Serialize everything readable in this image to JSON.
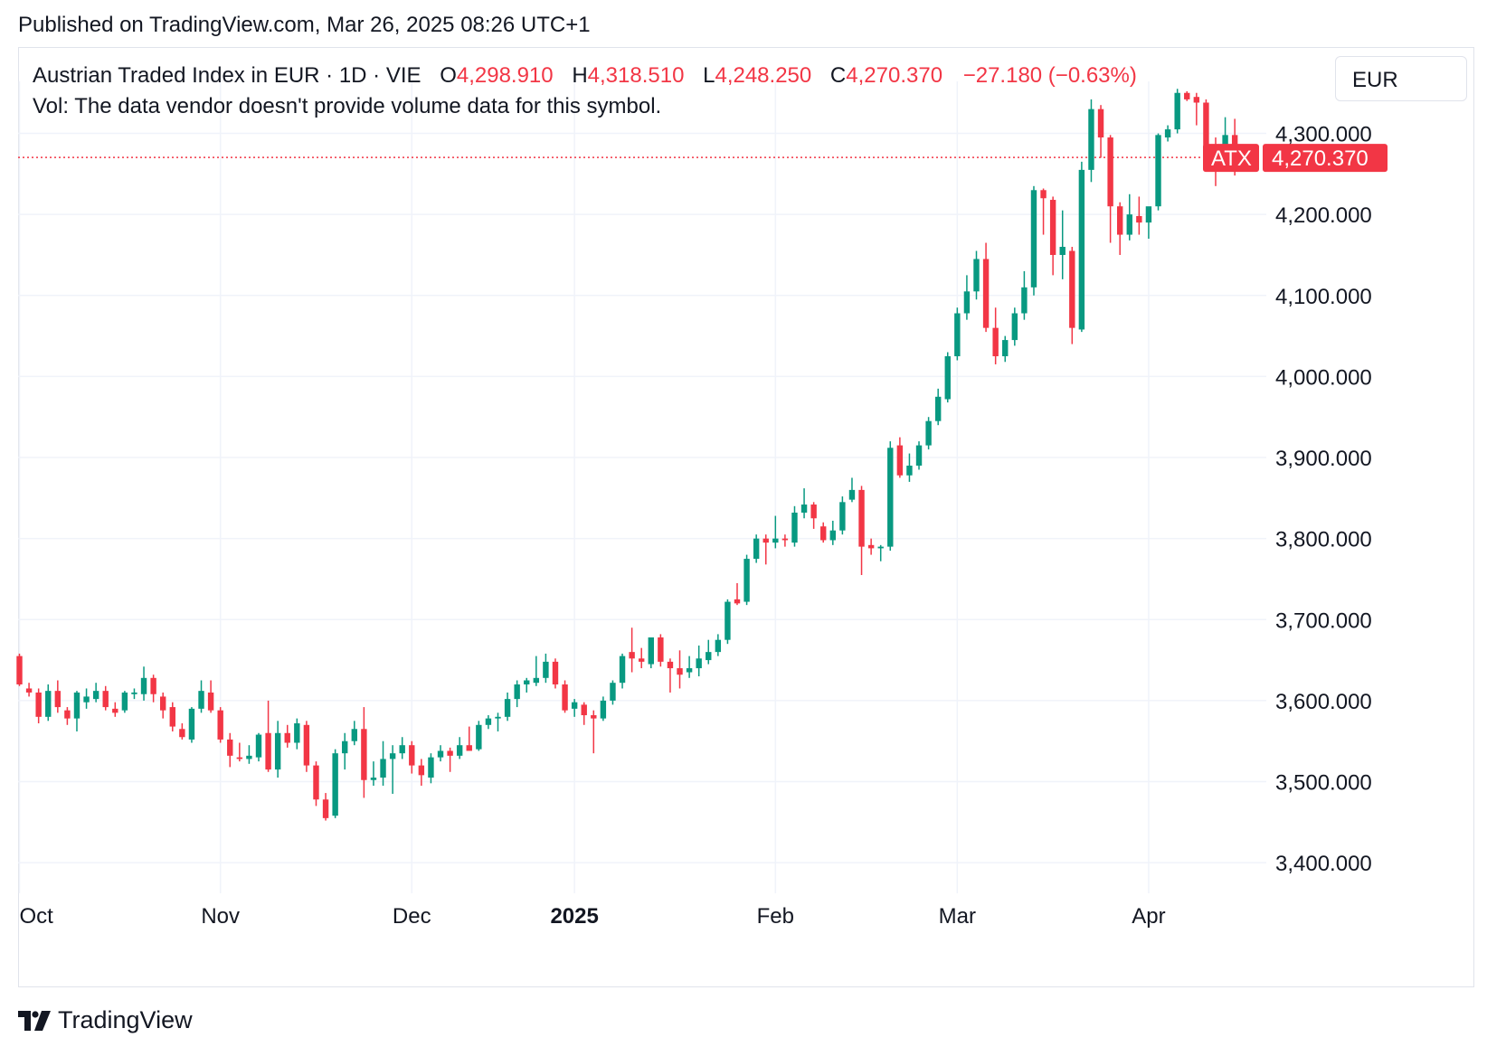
{
  "published": "Published on TradingView.com, Mar 26, 2025 08:26 UTC+1",
  "legend": {
    "title": "Austrian Traded Index in EUR · 1D · VIE",
    "o_key": "O",
    "o_val": "4,298.910",
    "h_key": "H",
    "h_val": "4,318.510",
    "l_key": "L",
    "l_val": "4,248.250",
    "c_key": "C",
    "c_val": "4,270.370",
    "change": "−27.180 (−0.63%)",
    "vol": "Vol: The data vendor doesn't provide volume data for this symbol."
  },
  "currency": "EUR",
  "footer": {
    "brand": "TradingView"
  },
  "colors": {
    "up": "#089981",
    "down": "#f23645",
    "grid": "#f0f3fa",
    "text": "#131722"
  },
  "chart_data": {
    "type": "candlestick",
    "symbol": "ATX",
    "last_price": 4270.37,
    "last_price_label": "4,270.370",
    "ylim": [
      3360,
      4420
    ],
    "y_ticks": [
      3400,
      3500,
      3600,
      3700,
      3800,
      3900,
      4000,
      4100,
      4200,
      4300
    ],
    "y_tick_labels": [
      "3,400.000",
      "3,500.000",
      "3,600.000",
      "3,700.000",
      "3,800.000",
      "3,900.000",
      "4,000.000",
      "4,100.000",
      "4,200.000",
      "4,300.000"
    ],
    "x_ticks": [
      {
        "label": "Oct",
        "index": 0,
        "bold": false
      },
      {
        "label": "Nov",
        "index": 21,
        "bold": false
      },
      {
        "label": "Dec",
        "index": 41,
        "bold": false
      },
      {
        "label": "2025",
        "index": 58,
        "bold": true
      },
      {
        "label": "Feb",
        "index": 79,
        "bold": false
      },
      {
        "label": "Mar",
        "index": 98,
        "bold": false
      },
      {
        "label": "Apr",
        "index": 118,
        "bold": false
      }
    ],
    "candles": [
      [
        3655,
        3658,
        3618,
        3620
      ],
      [
        3615,
        3622,
        3605,
        3610
      ],
      [
        3610,
        3615,
        3572,
        3580
      ],
      [
        3580,
        3620,
        3575,
        3612
      ],
      [
        3612,
        3625,
        3585,
        3592
      ],
      [
        3588,
        3592,
        3570,
        3578
      ],
      [
        3578,
        3612,
        3562,
        3610
      ],
      [
        3598,
        3615,
        3590,
        3605
      ],
      [
        3602,
        3622,
        3598,
        3612
      ],
      [
        3612,
        3618,
        3588,
        3592
      ],
      [
        3590,
        3598,
        3580,
        3585
      ],
      [
        3588,
        3612,
        3585,
        3610
      ],
      [
        3608,
        3615,
        3602,
        3610
      ],
      [
        3608,
        3642,
        3600,
        3628
      ],
      [
        3628,
        3632,
        3598,
        3608
      ],
      [
        3605,
        3610,
        3578,
        3588
      ],
      [
        3592,
        3598,
        3562,
        3568
      ],
      [
        3565,
        3572,
        3552,
        3555
      ],
      [
        3552,
        3592,
        3548,
        3590
      ],
      [
        3590,
        3625,
        3585,
        3612
      ],
      [
        3610,
        3625,
        3585,
        3588
      ],
      [
        3588,
        3592,
        3548,
        3552
      ],
      [
        3552,
        3560,
        3518,
        3532
      ],
      [
        3530,
        3548,
        3525,
        3528
      ],
      [
        3528,
        3545,
        3522,
        3532
      ],
      [
        3530,
        3560,
        3525,
        3558
      ],
      [
        3560,
        3600,
        3512,
        3515
      ],
      [
        3515,
        3575,
        3505,
        3560
      ],
      [
        3560,
        3570,
        3542,
        3548
      ],
      [
        3548,
        3578,
        3540,
        3572
      ],
      [
        3570,
        3575,
        3512,
        3520
      ],
      [
        3520,
        3525,
        3470,
        3478
      ],
      [
        3478,
        3486,
        3452,
        3455
      ],
      [
        3458,
        3540,
        3455,
        3535
      ],
      [
        3535,
        3560,
        3515,
        3550
      ],
      [
        3550,
        3575,
        3545,
        3565
      ],
      [
        3565,
        3592,
        3480,
        3502
      ],
      [
        3502,
        3525,
        3495,
        3505
      ],
      [
        3505,
        3550,
        3495,
        3528
      ],
      [
        3528,
        3545,
        3485,
        3535
      ],
      [
        3535,
        3555,
        3528,
        3545
      ],
      [
        3545,
        3550,
        3510,
        3520
      ],
      [
        3520,
        3528,
        3495,
        3508
      ],
      [
        3505,
        3535,
        3498,
        3530
      ],
      [
        3530,
        3545,
        3525,
        3538
      ],
      [
        3538,
        3542,
        3512,
        3532
      ],
      [
        3532,
        3555,
        3528,
        3545
      ],
      [
        3545,
        3568,
        3540,
        3538
      ],
      [
        3540,
        3575,
        3538,
        3570
      ],
      [
        3570,
        3582,
        3565,
        3578
      ],
      [
        3578,
        3585,
        3562,
        3580
      ],
      [
        3580,
        3610,
        3575,
        3602
      ],
      [
        3602,
        3625,
        3592,
        3620
      ],
      [
        3620,
        3628,
        3610,
        3625
      ],
      [
        3622,
        3655,
        3618,
        3628
      ],
      [
        3628,
        3658,
        3622,
        3648
      ],
      [
        3648,
        3652,
        3615,
        3620
      ],
      [
        3620,
        3625,
        3585,
        3588
      ],
      [
        3590,
        3602,
        3580,
        3598
      ],
      [
        3595,
        3598,
        3570,
        3582
      ],
      [
        3582,
        3588,
        3535,
        3578
      ],
      [
        3578,
        3605,
        3575,
        3600
      ],
      [
        3600,
        3625,
        3595,
        3622
      ],
      [
        3622,
        3658,
        3615,
        3655
      ],
      [
        3660,
        3690,
        3635,
        3652
      ],
      [
        3652,
        3665,
        3640,
        3648
      ],
      [
        3645,
        3678,
        3640,
        3678
      ],
      [
        3678,
        3682,
        3642,
        3648
      ],
      [
        3648,
        3652,
        3610,
        3640
      ],
      [
        3640,
        3662,
        3615,
        3632
      ],
      [
        3635,
        3655,
        3628,
        3640
      ],
      [
        3640,
        3668,
        3630,
        3652
      ],
      [
        3650,
        3675,
        3645,
        3660
      ],
      [
        3660,
        3682,
        3655,
        3675
      ],
      [
        3675,
        3725,
        3670,
        3722
      ],
      [
        3725,
        3745,
        3718,
        3720
      ],
      [
        3722,
        3780,
        3718,
        3775
      ],
      [
        3775,
        3805,
        3770,
        3800
      ],
      [
        3800,
        3805,
        3768,
        3795
      ],
      [
        3795,
        3828,
        3788,
        3800
      ],
      [
        3800,
        3805,
        3790,
        3798
      ],
      [
        3795,
        3840,
        3790,
        3832
      ],
      [
        3832,
        3862,
        3825,
        3842
      ],
      [
        3842,
        3845,
        3812,
        3825
      ],
      [
        3815,
        3820,
        3795,
        3798
      ],
      [
        3798,
        3822,
        3792,
        3810
      ],
      [
        3810,
        3852,
        3805,
        3845
      ],
      [
        3848,
        3875,
        3845,
        3860
      ],
      [
        3860,
        3865,
        3755,
        3790
      ],
      [
        3792,
        3800,
        3780,
        3788
      ],
      [
        3788,
        3792,
        3772,
        3790
      ],
      [
        3790,
        3920,
        3785,
        3912
      ],
      [
        3915,
        3925,
        3875,
        3878
      ],
      [
        3878,
        3905,
        3870,
        3890
      ],
      [
        3890,
        3920,
        3885,
        3915
      ],
      [
        3915,
        3950,
        3910,
        3945
      ],
      [
        3945,
        3985,
        3940,
        3975
      ],
      [
        3972,
        4030,
        3968,
        4025
      ],
      [
        4025,
        4085,
        4020,
        4078
      ],
      [
        4078,
        4125,
        4070,
        4105
      ],
      [
        4105,
        4155,
        4095,
        4145
      ],
      [
        4145,
        4165,
        4055,
        4060
      ],
      [
        4060,
        4085,
        4015,
        4025
      ],
      [
        4025,
        4050,
        4018,
        4045
      ],
      [
        4045,
        4085,
        4038,
        4078
      ],
      [
        4078,
        4130,
        4070,
        4110
      ],
      [
        4110,
        4235,
        4100,
        4230
      ],
      [
        4230,
        4232,
        4175,
        4220
      ],
      [
        4218,
        4222,
        4125,
        4150
      ],
      [
        4150,
        4205,
        4120,
        4160
      ],
      [
        4155,
        4160,
        4040,
        4060
      ],
      [
        4058,
        4265,
        4055,
        4255
      ],
      [
        4255,
        4342,
        4240,
        4330
      ],
      [
        4330,
        4335,
        4270,
        4295
      ],
      [
        4295,
        4298,
        4165,
        4210
      ],
      [
        4210,
        4215,
        4150,
        4175
      ],
      [
        4175,
        4225,
        4168,
        4200
      ],
      [
        4198,
        4222,
        4175,
        4190
      ],
      [
        4190,
        4205,
        4170,
        4210
      ],
      [
        4210,
        4300,
        4205,
        4298
      ],
      [
        4295,
        4310,
        4290,
        4305
      ],
      [
        4305,
        4355,
        4300,
        4350
      ],
      [
        4350,
        4352,
        4340,
        4342
      ],
      [
        4345,
        4350,
        4310,
        4338
      ],
      [
        4338,
        4342,
        4255,
        4282
      ],
      [
        4282,
        4295,
        4235,
        4258
      ],
      [
        4262,
        4320,
        4255,
        4298
      ],
      [
        4298,
        4318,
        4248,
        4270
      ]
    ]
  }
}
